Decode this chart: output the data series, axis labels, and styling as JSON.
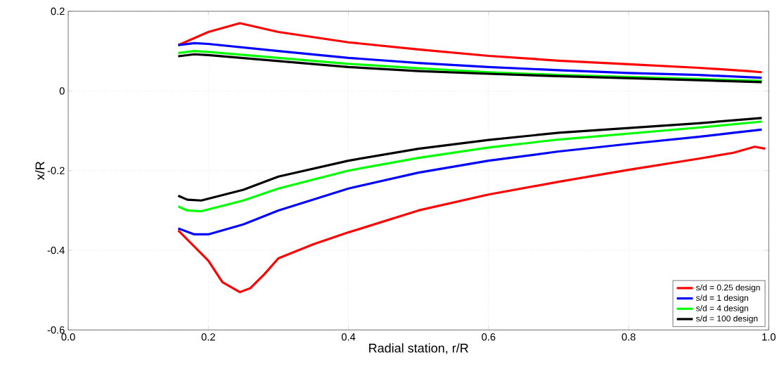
{
  "chart_data": {
    "type": "line",
    "xlabel": "Radial station, r/R",
    "ylabel": "x/R",
    "xlim": [
      0,
      1
    ],
    "ylim": [
      -0.6,
      0.2
    ],
    "xticks": [
      {
        "value": 0,
        "label": "0.0"
      },
      0.2,
      0.4,
      0.6,
      0.8,
      {
        "value": 1,
        "label": "1.0"
      }
    ],
    "yticks": [
      -0.6,
      -0.4,
      -0.2,
      0,
      0.2
    ],
    "grid": true,
    "legend": "bottom right",
    "marker": "none",
    "line_style": "solid",
    "series": [
      {
        "name": "s/d = 0.25 design",
        "color": "#ff0000",
        "x": [
          0.157,
          0.2,
          0.245,
          0.3,
          0.4,
          0.5,
          0.6,
          0.7,
          0.8,
          0.9,
          0.97,
          0.99
        ],
        "values": [
          0.115,
          0.148,
          0.17,
          0.148,
          0.122,
          0.104,
          0.088,
          0.076,
          0.067,
          0.058,
          0.05,
          0.047
        ]
      },
      {
        "color": "#ff0000",
        "x": [
          0.157,
          0.2,
          0.22,
          0.245,
          0.26,
          0.28,
          0.3,
          0.35,
          0.4,
          0.5,
          0.6,
          0.7,
          0.8,
          0.9,
          0.95,
          0.98,
          0.995
        ],
        "values": [
          -0.35,
          -0.426,
          -0.48,
          -0.505,
          -0.495,
          -0.46,
          -0.42,
          -0.385,
          -0.355,
          -0.3,
          -0.26,
          -0.228,
          -0.198,
          -0.17,
          -0.155,
          -0.14,
          -0.145
        ]
      },
      {
        "name": "s/d = 1 design",
        "color": "#0000ff",
        "x": [
          0.157,
          0.18,
          0.2,
          0.3,
          0.4,
          0.5,
          0.6,
          0.7,
          0.8,
          0.9,
          0.99
        ],
        "values": [
          0.115,
          0.12,
          0.118,
          0.1,
          0.083,
          0.07,
          0.06,
          0.052,
          0.045,
          0.04,
          0.033
        ]
      },
      {
        "color": "#0000ff",
        "x": [
          0.157,
          0.18,
          0.2,
          0.25,
          0.3,
          0.4,
          0.5,
          0.6,
          0.7,
          0.8,
          0.9,
          0.95,
          0.99
        ],
        "values": [
          -0.345,
          -0.36,
          -0.36,
          -0.335,
          -0.3,
          -0.245,
          -0.205,
          -0.175,
          -0.152,
          -0.133,
          -0.115,
          -0.105,
          -0.097
        ]
      },
      {
        "name": "s/d = 4 design",
        "color": "#00ff00",
        "x": [
          0.157,
          0.18,
          0.2,
          0.3,
          0.4,
          0.5,
          0.6,
          0.7,
          0.8,
          0.9,
          0.99
        ],
        "values": [
          0.095,
          0.1,
          0.098,
          0.083,
          0.068,
          0.057,
          0.047,
          0.04,
          0.035,
          0.03,
          0.025
        ]
      },
      {
        "color": "#00ff00",
        "x": [
          0.157,
          0.17,
          0.19,
          0.25,
          0.3,
          0.4,
          0.5,
          0.6,
          0.7,
          0.8,
          0.9,
          0.99
        ],
        "values": [
          -0.29,
          -0.3,
          -0.302,
          -0.275,
          -0.245,
          -0.2,
          -0.168,
          -0.142,
          -0.122,
          -0.107,
          -0.092,
          -0.077
        ]
      },
      {
        "name": "s/d = 100 design",
        "color": "#000000",
        "x": [
          0.157,
          0.18,
          0.2,
          0.3,
          0.4,
          0.5,
          0.6,
          0.7,
          0.8,
          0.9,
          0.99
        ],
        "values": [
          0.087,
          0.092,
          0.09,
          0.075,
          0.06,
          0.05,
          0.043,
          0.037,
          0.032,
          0.027,
          0.022
        ]
      },
      {
        "color": "#000000",
        "x": [
          0.157,
          0.17,
          0.19,
          0.25,
          0.3,
          0.4,
          0.5,
          0.6,
          0.7,
          0.8,
          0.9,
          0.99
        ],
        "values": [
          -0.263,
          -0.273,
          -0.275,
          -0.248,
          -0.215,
          -0.175,
          -0.145,
          -0.123,
          -0.105,
          -0.093,
          -0.081,
          -0.068
        ]
      }
    ]
  }
}
